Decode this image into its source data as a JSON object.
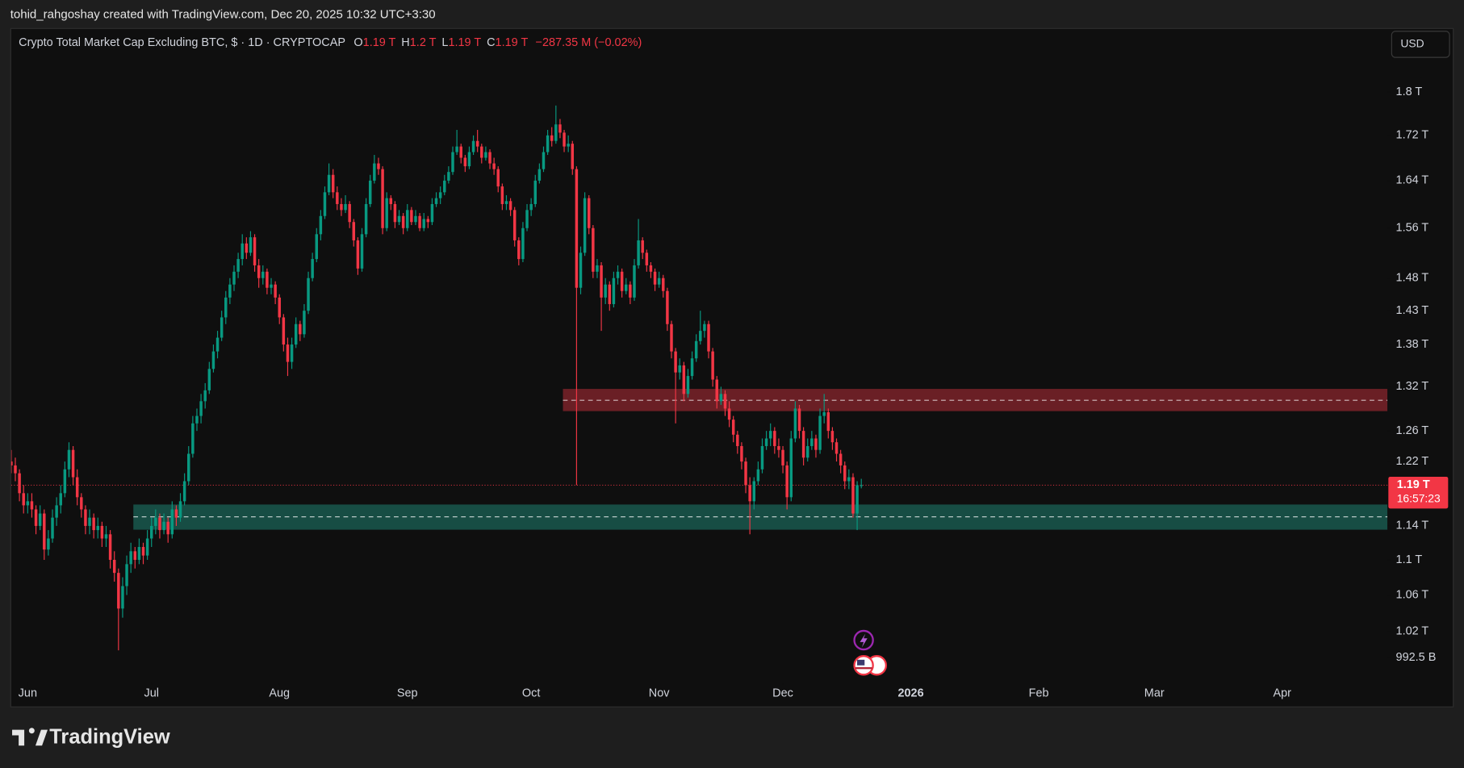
{
  "attribution": "tohid_rahgoshay created with TradingView.com, Dec 20, 2025 10:32 UTC+3:30",
  "branding": "TradingView",
  "chart_data": {
    "type": "candlestick",
    "title": "Crypto Total Market Cap Excluding BTC, $ · 1D · CRYPTOCAP",
    "ohlc_legend": [
      {
        "label": "O",
        "value": "1.19 T"
      },
      {
        "label": "H",
        "value": "1.2 T"
      },
      {
        "label": "L",
        "value": "1.19 T"
      },
      {
        "label": "C",
        "value": "1.19 T"
      }
    ],
    "change": "−287.35 M (−0.02%)",
    "currency": "USD",
    "up_color": "#089981",
    "down_color": "#f23645",
    "log_scale": true,
    "grid": false,
    "ylim": [
      0.968,
      1.926
    ],
    "yticks": [
      {
        "value": 1.8,
        "label": "1.8 T"
      },
      {
        "value": 1.72,
        "label": "1.72 T"
      },
      {
        "value": 1.64,
        "label": "1.64 T"
      },
      {
        "value": 1.56,
        "label": "1.56 T"
      },
      {
        "value": 1.48,
        "label": "1.48 T"
      },
      {
        "value": 1.43,
        "label": "1.43 T"
      },
      {
        "value": 1.38,
        "label": "1.38 T"
      },
      {
        "value": 1.32,
        "label": "1.32 T"
      },
      {
        "value": 1.26,
        "label": "1.26 T"
      },
      {
        "value": 1.22,
        "label": "1.22 T"
      },
      {
        "value": 1.14,
        "label": "1.14 T"
      },
      {
        "value": 1.1,
        "label": "1.1 T"
      },
      {
        "value": 1.06,
        "label": "1.06 T"
      },
      {
        "value": 1.02,
        "label": "1.02 T"
      },
      {
        "value": 0.9925,
        "label": "992.5 B"
      }
    ],
    "xlim": [
      0,
      333.5
    ],
    "xticks": [
      {
        "value": 4,
        "label": "Jun"
      },
      {
        "value": 34,
        "label": "Jul"
      },
      {
        "value": 65,
        "label": "Aug"
      },
      {
        "value": 96,
        "label": "Sep"
      },
      {
        "value": 126,
        "label": "Oct"
      },
      {
        "value": 157,
        "label": "Nov"
      },
      {
        "value": 187,
        "label": "Dec"
      },
      {
        "value": 218,
        "label": "2026"
      },
      {
        "value": 249,
        "label": "Feb"
      },
      {
        "value": 277,
        "label": "Mar"
      },
      {
        "value": 308,
        "label": "Apr"
      }
    ],
    "last_price": {
      "value": 1.19,
      "label": "1.19 T"
    },
    "countdown": "16:57:23",
    "zones": [
      {
        "start": 133.7,
        "top": 1.317,
        "bottom": 1.2865,
        "mid": 1.3013,
        "color": "#f23645"
      },
      {
        "start": 29.6,
        "top": 1.166,
        "bottom": 1.1355,
        "mid": 1.151,
        "color": "#22ab94"
      }
    ],
    "candles": [
      [
        1.22,
        1.235,
        1.205,
        1.215
      ],
      [
        1.215,
        1.225,
        1.195,
        1.205
      ],
      [
        1.205,
        1.21,
        1.17,
        1.18
      ],
      [
        1.18,
        1.19,
        1.155,
        1.165
      ],
      [
        1.165,
        1.18,
        1.155,
        1.17
      ],
      [
        1.17,
        1.18,
        1.15,
        1.16
      ],
      [
        1.16,
        1.165,
        1.13,
        1.14
      ],
      [
        1.14,
        1.165,
        1.135,
        1.155
      ],
      [
        1.155,
        1.16,
        1.1,
        1.112
      ],
      [
        1.112,
        1.135,
        1.105,
        1.125
      ],
      [
        1.125,
        1.16,
        1.12,
        1.15
      ],
      [
        1.15,
        1.175,
        1.14,
        1.165
      ],
      [
        1.165,
        1.19,
        1.155,
        1.18
      ],
      [
        1.18,
        1.22,
        1.175,
        1.21
      ],
      [
        1.21,
        1.245,
        1.2,
        1.235
      ],
      [
        1.235,
        1.24,
        1.19,
        1.2
      ],
      [
        1.2,
        1.21,
        1.165,
        1.175
      ],
      [
        1.175,
        1.18,
        1.15,
        1.16
      ],
      [
        1.16,
        1.165,
        1.13,
        1.14
      ],
      [
        1.14,
        1.16,
        1.13,
        1.15
      ],
      [
        1.15,
        1.155,
        1.125,
        1.135
      ],
      [
        1.135,
        1.15,
        1.125,
        1.14
      ],
      [
        1.14,
        1.145,
        1.115,
        1.125
      ],
      [
        1.125,
        1.14,
        1.115,
        1.13
      ],
      [
        1.13,
        1.135,
        1.09,
        1.1
      ],
      [
        1.1,
        1.11,
        1.075,
        1.085
      ],
      [
        1.085,
        1.09,
        1.0,
        1.045
      ],
      [
        1.045,
        1.08,
        1.035,
        1.07
      ],
      [
        1.07,
        1.105,
        1.06,
        1.095
      ],
      [
        1.095,
        1.12,
        1.085,
        1.11
      ],
      [
        1.11,
        1.115,
        1.09,
        1.1
      ],
      [
        1.1,
        1.125,
        1.095,
        1.115
      ],
      [
        1.115,
        1.12,
        1.095,
        1.105
      ],
      [
        1.105,
        1.135,
        1.1,
        1.125
      ],
      [
        1.125,
        1.15,
        1.115,
        1.14
      ],
      [
        1.14,
        1.16,
        1.13,
        1.15
      ],
      [
        1.15,
        1.155,
        1.125,
        1.135
      ],
      [
        1.135,
        1.155,
        1.13,
        1.145
      ],
      [
        1.145,
        1.15,
        1.12,
        1.13
      ],
      [
        1.13,
        1.17,
        1.125,
        1.16
      ],
      [
        1.16,
        1.165,
        1.14,
        1.15
      ],
      [
        1.15,
        1.18,
        1.145,
        1.17
      ],
      [
        1.17,
        1.205,
        1.165,
        1.195
      ],
      [
        1.195,
        1.24,
        1.19,
        1.23
      ],
      [
        1.23,
        1.28,
        1.225,
        1.27
      ],
      [
        1.27,
        1.29,
        1.26,
        1.28
      ],
      [
        1.28,
        1.31,
        1.27,
        1.3
      ],
      [
        1.3,
        1.325,
        1.29,
        1.315
      ],
      [
        1.315,
        1.355,
        1.31,
        1.345
      ],
      [
        1.345,
        1.38,
        1.34,
        1.37
      ],
      [
        1.37,
        1.4,
        1.36,
        1.39
      ],
      [
        1.39,
        1.43,
        1.385,
        1.42
      ],
      [
        1.42,
        1.46,
        1.41,
        1.45
      ],
      [
        1.45,
        1.48,
        1.44,
        1.47
      ],
      [
        1.47,
        1.5,
        1.46,
        1.49
      ],
      [
        1.49,
        1.52,
        1.48,
        1.51
      ],
      [
        1.51,
        1.55,
        1.5,
        1.535
      ],
      [
        1.535,
        1.545,
        1.51,
        1.52
      ],
      [
        1.52,
        1.555,
        1.515,
        1.545
      ],
      [
        1.545,
        1.55,
        1.49,
        1.5
      ],
      [
        1.5,
        1.51,
        1.465,
        1.48
      ],
      [
        1.48,
        1.5,
        1.47,
        1.49
      ],
      [
        1.49,
        1.495,
        1.455,
        1.465
      ],
      [
        1.465,
        1.48,
        1.455,
        1.47
      ],
      [
        1.47,
        1.475,
        1.44,
        1.45
      ],
      [
        1.45,
        1.455,
        1.41,
        1.42
      ],
      [
        1.42,
        1.425,
        1.37,
        1.38
      ],
      [
        1.38,
        1.39,
        1.335,
        1.355
      ],
      [
        1.355,
        1.39,
        1.345,
        1.38
      ],
      [
        1.38,
        1.42,
        1.375,
        1.41
      ],
      [
        1.41,
        1.415,
        1.385,
        1.395
      ],
      [
        1.395,
        1.44,
        1.39,
        1.43
      ],
      [
        1.43,
        1.49,
        1.425,
        1.48
      ],
      [
        1.48,
        1.52,
        1.475,
        1.51
      ],
      [
        1.51,
        1.56,
        1.505,
        1.55
      ],
      [
        1.55,
        1.59,
        1.54,
        1.58
      ],
      [
        1.58,
        1.63,
        1.575,
        1.62
      ],
      [
        1.62,
        1.67,
        1.615,
        1.65
      ],
      [
        1.65,
        1.66,
        1.61,
        1.62
      ],
      [
        1.62,
        1.63,
        1.59,
        1.6
      ],
      [
        1.6,
        1.61,
        1.58,
        1.59
      ],
      [
        1.59,
        1.615,
        1.585,
        1.6
      ],
      [
        1.6,
        1.605,
        1.56,
        1.57
      ],
      [
        1.57,
        1.575,
        1.53,
        1.54
      ],
      [
        1.54,
        1.545,
        1.485,
        1.495
      ],
      [
        1.495,
        1.56,
        1.49,
        1.55
      ],
      [
        1.55,
        1.61,
        1.545,
        1.6
      ],
      [
        1.6,
        1.65,
        1.595,
        1.64
      ],
      [
        1.64,
        1.685,
        1.635,
        1.67
      ],
      [
        1.67,
        1.68,
        1.65,
        1.66
      ],
      [
        1.66,
        1.665,
        1.55,
        1.56
      ],
      [
        1.56,
        1.62,
        1.555,
        1.61
      ],
      [
        1.61,
        1.615,
        1.59,
        1.6
      ],
      [
        1.6,
        1.605,
        1.56,
        1.57
      ],
      [
        1.57,
        1.59,
        1.565,
        1.58
      ],
      [
        1.58,
        1.585,
        1.55,
        1.56
      ],
      [
        1.56,
        1.6,
        1.555,
        1.59
      ],
      [
        1.59,
        1.595,
        1.565,
        1.57
      ],
      [
        1.57,
        1.59,
        1.565,
        1.58
      ],
      [
        1.58,
        1.585,
        1.555,
        1.56
      ],
      [
        1.56,
        1.585,
        1.555,
        1.575
      ],
      [
        1.575,
        1.58,
        1.56,
        1.57
      ],
      [
        1.57,
        1.61,
        1.565,
        1.6
      ],
      [
        1.6,
        1.62,
        1.595,
        1.61
      ],
      [
        1.61,
        1.63,
        1.6,
        1.62
      ],
      [
        1.62,
        1.65,
        1.615,
        1.64
      ],
      [
        1.64,
        1.665,
        1.635,
        1.655
      ],
      [
        1.655,
        1.7,
        1.65,
        1.69
      ],
      [
        1.69,
        1.73,
        1.685,
        1.7
      ],
      [
        1.7,
        1.705,
        1.67,
        1.68
      ],
      [
        1.68,
        1.685,
        1.655,
        1.665
      ],
      [
        1.665,
        1.7,
        1.66,
        1.69
      ],
      [
        1.69,
        1.72,
        1.685,
        1.71
      ],
      [
        1.71,
        1.73,
        1.69,
        1.7
      ],
      [
        1.7,
        1.705,
        1.67,
        1.68
      ],
      [
        1.68,
        1.7,
        1.675,
        1.69
      ],
      [
        1.69,
        1.695,
        1.66,
        1.67
      ],
      [
        1.67,
        1.68,
        1.65,
        1.66
      ],
      [
        1.66,
        1.665,
        1.62,
        1.63
      ],
      [
        1.63,
        1.635,
        1.59,
        1.6
      ],
      [
        1.6,
        1.615,
        1.59,
        1.605
      ],
      [
        1.605,
        1.61,
        1.58,
        1.59
      ],
      [
        1.59,
        1.595,
        1.53,
        1.54
      ],
      [
        1.54,
        1.545,
        1.5,
        1.51
      ],
      [
        1.51,
        1.57,
        1.505,
        1.56
      ],
      [
        1.56,
        1.6,
        1.555,
        1.59
      ],
      [
        1.59,
        1.61,
        1.58,
        1.6
      ],
      [
        1.6,
        1.65,
        1.595,
        1.64
      ],
      [
        1.64,
        1.67,
        1.635,
        1.66
      ],
      [
        1.66,
        1.7,
        1.655,
        1.69
      ],
      [
        1.69,
        1.73,
        1.685,
        1.72
      ],
      [
        1.72,
        1.735,
        1.7,
        1.71
      ],
      [
        1.71,
        1.775,
        1.705,
        1.74
      ],
      [
        1.74,
        1.75,
        1.715,
        1.725
      ],
      [
        1.725,
        1.73,
        1.69,
        1.7
      ],
      [
        1.7,
        1.72,
        1.69,
        1.705
      ],
      [
        1.705,
        1.71,
        1.65,
        1.66
      ],
      [
        1.66,
        1.665,
        1.19,
        1.465
      ],
      [
        1.465,
        1.53,
        1.455,
        1.52
      ],
      [
        1.52,
        1.62,
        1.515,
        1.61
      ],
      [
        1.61,
        1.615,
        1.55,
        1.56
      ],
      [
        1.56,
        1.565,
        1.48,
        1.49
      ],
      [
        1.49,
        1.51,
        1.48,
        1.5
      ],
      [
        1.5,
        1.505,
        1.4,
        1.45
      ],
      [
        1.45,
        1.48,
        1.44,
        1.47
      ],
      [
        1.47,
        1.475,
        1.43,
        1.44
      ],
      [
        1.44,
        1.49,
        1.435,
        1.48
      ],
      [
        1.48,
        1.5,
        1.47,
        1.49
      ],
      [
        1.49,
        1.495,
        1.45,
        1.46
      ],
      [
        1.46,
        1.48,
        1.455,
        1.47
      ],
      [
        1.47,
        1.475,
        1.44,
        1.45
      ],
      [
        1.45,
        1.51,
        1.445,
        1.5
      ],
      [
        1.5,
        1.575,
        1.495,
        1.54
      ],
      [
        1.54,
        1.545,
        1.51,
        1.52
      ],
      [
        1.52,
        1.525,
        1.49,
        1.5
      ],
      [
        1.5,
        1.505,
        1.48,
        1.49
      ],
      [
        1.49,
        1.495,
        1.46,
        1.47
      ],
      [
        1.47,
        1.49,
        1.465,
        1.48
      ],
      [
        1.48,
        1.485,
        1.45,
        1.46
      ],
      [
        1.46,
        1.465,
        1.4,
        1.41
      ],
      [
        1.41,
        1.415,
        1.36,
        1.37
      ],
      [
        1.37,
        1.375,
        1.27,
        1.34
      ],
      [
        1.34,
        1.36,
        1.33,
        1.35
      ],
      [
        1.35,
        1.355,
        1.3,
        1.31
      ],
      [
        1.31,
        1.345,
        1.305,
        1.335
      ],
      [
        1.335,
        1.37,
        1.33,
        1.36
      ],
      [
        1.36,
        1.395,
        1.355,
        1.385
      ],
      [
        1.385,
        1.43,
        1.38,
        1.4
      ],
      [
        1.4,
        1.415,
        1.39,
        1.41
      ],
      [
        1.41,
        1.415,
        1.36,
        1.37
      ],
      [
        1.37,
        1.375,
        1.32,
        1.33
      ],
      [
        1.33,
        1.335,
        1.29,
        1.3
      ],
      [
        1.3,
        1.32,
        1.295,
        1.31
      ],
      [
        1.31,
        1.315,
        1.28,
        1.29
      ],
      [
        1.29,
        1.3,
        1.265,
        1.275
      ],
      [
        1.275,
        1.28,
        1.245,
        1.255
      ],
      [
        1.255,
        1.26,
        1.23,
        1.24
      ],
      [
        1.24,
        1.245,
        1.21,
        1.22
      ],
      [
        1.22,
        1.225,
        1.18,
        1.19
      ],
      [
        1.19,
        1.2,
        1.13,
        1.17
      ],
      [
        1.17,
        1.2,
        1.16,
        1.195
      ],
      [
        1.195,
        1.22,
        1.19,
        1.21
      ],
      [
        1.21,
        1.25,
        1.205,
        1.24
      ],
      [
        1.24,
        1.26,
        1.235,
        1.25
      ],
      [
        1.25,
        1.27,
        1.24,
        1.26
      ],
      [
        1.26,
        1.265,
        1.23,
        1.24
      ],
      [
        1.24,
        1.25,
        1.225,
        1.235
      ],
      [
        1.235,
        1.24,
        1.205,
        1.215
      ],
      [
        1.215,
        1.22,
        1.16,
        1.175
      ],
      [
        1.175,
        1.26,
        1.17,
        1.25
      ],
      [
        1.25,
        1.3,
        1.245,
        1.29
      ],
      [
        1.29,
        1.295,
        1.25,
        1.26
      ],
      [
        1.26,
        1.265,
        1.215,
        1.225
      ],
      [
        1.225,
        1.25,
        1.22,
        1.24
      ],
      [
        1.24,
        1.26,
        1.235,
        1.25
      ],
      [
        1.25,
        1.255,
        1.225,
        1.235
      ],
      [
        1.235,
        1.29,
        1.23,
        1.28
      ],
      [
        1.28,
        1.31,
        1.27,
        1.285
      ],
      [
        1.285,
        1.29,
        1.25,
        1.26
      ],
      [
        1.26,
        1.265,
        1.235,
        1.245
      ],
      [
        1.245,
        1.25,
        1.22,
        1.23
      ],
      [
        1.23,
        1.235,
        1.205,
        1.215
      ],
      [
        1.215,
        1.22,
        1.185,
        1.195
      ],
      [
        1.195,
        1.21,
        1.185,
        1.2
      ],
      [
        1.2,
        1.205,
        1.15,
        1.155
      ],
      [
        1.155,
        1.195,
        1.135,
        1.19
      ],
      [
        1.19,
        1.198,
        1.186,
        1.19
      ]
    ]
  }
}
